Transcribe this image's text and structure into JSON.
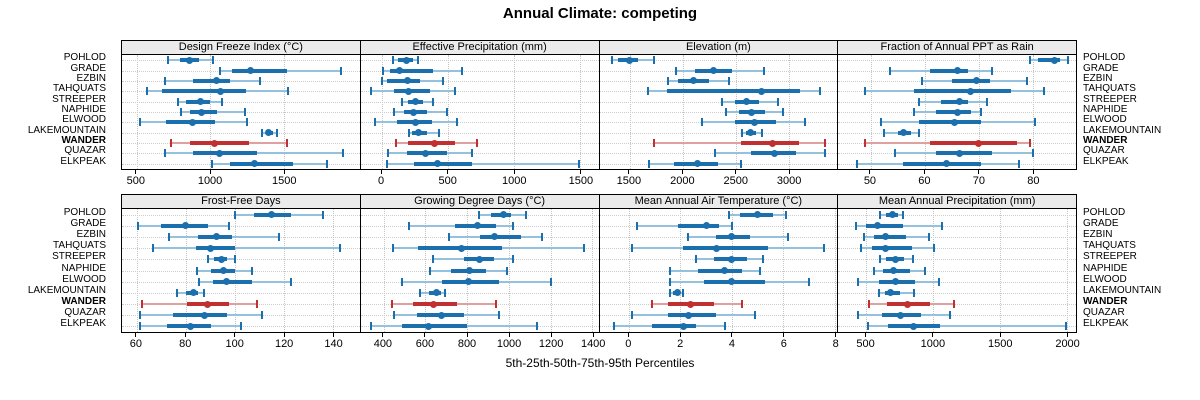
{
  "title": "Annual Climate: competing",
  "caption": "5th-25th-50th-75th-95th Percentiles",
  "colors": {
    "series_blue": "#1b6fad",
    "series_blue_light": "#93c1de",
    "highlight_red": "#c13030",
    "highlight_red_light": "#dfa0a0",
    "strip_bg": "#ebebeb",
    "grid": "#c8c8c8",
    "border": "#000000"
  },
  "chart_data": {
    "type": "dotplot-percentile-whiskers",
    "percentiles": [
      5,
      25,
      50,
      75,
      95
    ],
    "legend": "none",
    "grid": "dotted",
    "layout": {
      "rows": 2,
      "cols": 4
    },
    "sites": [
      "POHLOD",
      "GRADE",
      "EZBIN",
      "TAHQUATS",
      "STREEPER",
      "NAPHIDE",
      "ELWOOD",
      "LAKEMOUNTAIN",
      "WANDER",
      "QUAZAR",
      "ELKPEAK"
    ],
    "highlight_site": "WANDER",
    "panels": [
      {
        "slug": "design-freeze-index",
        "title": "Design Freeze Index (°C)",
        "xlim": [
          400,
          2015
        ],
        "ticks": [
          500,
          1000,
          1500
        ],
        "values": [
          [
            710,
            795,
            860,
            925,
            1015
          ],
          [
            1065,
            1145,
            1270,
            1520,
            1890
          ],
          [
            695,
            880,
            1045,
            1135,
            1335
          ],
          [
            570,
            670,
            1070,
            1240,
            1530
          ],
          [
            780,
            835,
            930,
            1000,
            1080
          ],
          [
            800,
            860,
            940,
            1045,
            1235
          ],
          [
            520,
            700,
            880,
            1030,
            1250
          ],
          [
            1350,
            1375,
            1398,
            1425,
            1450
          ],
          [
            735,
            860,
            1025,
            1260,
            1520
          ],
          [
            690,
            880,
            1060,
            1315,
            1900
          ],
          [
            1010,
            1135,
            1300,
            1560,
            1790
          ]
        ]
      },
      {
        "slug": "effective-precipitation",
        "title": "Effective Precipitation (mm)",
        "xlim": [
          -160,
          1640
        ],
        "ticks": [
          0,
          500,
          1000,
          1500
        ],
        "values": [
          [
            85,
            125,
            190,
            235,
            270
          ],
          [
            5,
            65,
            135,
            390,
            605
          ],
          [
            0,
            40,
            195,
            290,
            465
          ],
          [
            -80,
            90,
            200,
            365,
            555
          ],
          [
            150,
            200,
            255,
            315,
            390
          ],
          [
            95,
            165,
            240,
            340,
            490
          ],
          [
            -50,
            115,
            255,
            380,
            565
          ],
          [
            205,
            230,
            280,
            340,
            430
          ],
          [
            105,
            200,
            400,
            555,
            720
          ],
          [
            45,
            190,
            330,
            490,
            680
          ],
          [
            40,
            240,
            420,
            680,
            1495
          ]
        ]
      },
      {
        "slug": "elevation",
        "title": "Elevation (m)",
        "xlim": [
          1215,
          3460
        ],
        "ticks": [
          1500,
          2000,
          2500,
          3000
        ],
        "values": [
          [
            1335,
            1385,
            1495,
            1575,
            1725
          ],
          [
            1935,
            2120,
            2295,
            2470,
            2765
          ],
          [
            1860,
            1960,
            2105,
            2250,
            2440
          ],
          [
            1670,
            1850,
            2740,
            3110,
            3300
          ],
          [
            2375,
            2490,
            2600,
            2725,
            2900
          ],
          [
            2410,
            2535,
            2655,
            2775,
            2950
          ],
          [
            2185,
            2490,
            2680,
            2885,
            3155
          ],
          [
            2560,
            2600,
            2645,
            2695,
            2750
          ],
          [
            1730,
            2550,
            2845,
            3100,
            3340
          ],
          [
            2305,
            2645,
            2870,
            3075,
            3340
          ],
          [
            1680,
            1915,
            2145,
            2330,
            2550
          ]
        ]
      },
      {
        "slug": "fraction-ppt-rain",
        "title": "Fraction of Annual PPT as Rain",
        "xlim": [
          44,
          88
        ],
        "ticks": [
          50,
          60,
          70,
          80
        ],
        "values": [
          [
            79.5,
            81,
            84,
            85,
            86.5
          ],
          [
            53.5,
            61,
            66,
            68,
            72.5
          ],
          [
            59.5,
            65,
            69.5,
            72,
            79
          ],
          [
            49,
            58,
            68.5,
            76,
            82
          ],
          [
            59,
            63,
            66.5,
            68,
            71.5
          ],
          [
            58,
            62,
            66,
            68.5,
            70.5
          ],
          [
            52,
            59,
            65.5,
            70.5,
            80.5
          ],
          [
            52.5,
            55,
            56,
            57.5,
            59
          ],
          [
            49,
            61,
            70,
            77,
            79.5
          ],
          [
            54.5,
            62,
            66.5,
            72.5,
            80
          ],
          [
            47.5,
            56,
            64,
            70.5,
            77.5
          ]
        ]
      },
      {
        "slug": "frost-free-days",
        "title": "Frost-Free Days",
        "xlim": [
          54,
          151
        ],
        "ticks": [
          60,
          80,
          100,
          120,
          140
        ],
        "values": [
          [
            100,
            108,
            115,
            123,
            136
          ],
          [
            60.5,
            70,
            80,
            89,
            97.5
          ],
          [
            73,
            85,
            92.5,
            99,
            118
          ],
          [
            66.5,
            84,
            90,
            100,
            143
          ],
          [
            89,
            91.5,
            94.5,
            97,
            100
          ],
          [
            84.5,
            90.5,
            95.5,
            100,
            107
          ],
          [
            85.5,
            91,
            96.5,
            107,
            123
          ],
          [
            76.5,
            80,
            83,
            85,
            87.5
          ],
          [
            62,
            80.5,
            89,
            97.5,
            109
          ],
          [
            61.5,
            75,
            87.5,
            97,
            111
          ],
          [
            61.5,
            72.5,
            82,
            90.5,
            102.5
          ]
        ]
      },
      {
        "slug": "growing-degree-days",
        "title": "Growing Degree Days (°C)",
        "xlim": [
          290,
          1430
        ],
        "ticks": [
          400,
          600,
          800,
          1000,
          1200,
          1400
        ],
        "values": [
          [
            855,
            915,
            975,
            1010,
            1080
          ],
          [
            520,
            740,
            850,
            940,
            1020
          ],
          [
            715,
            860,
            930,
            1060,
            1160
          ],
          [
            445,
            565,
            775,
            965,
            1360
          ],
          [
            635,
            785,
            860,
            930,
            1020
          ],
          [
            620,
            725,
            810,
            890,
            990
          ],
          [
            490,
            680,
            805,
            955,
            1200
          ],
          [
            575,
            615,
            655,
            675,
            695
          ],
          [
            440,
            540,
            640,
            750,
            940
          ],
          [
            450,
            560,
            675,
            785,
            955
          ],
          [
            340,
            490,
            615,
            800,
            1135
          ]
        ]
      },
      {
        "slug": "mean-annual-air-temperature",
        "title": "Mean Annual Air Temperature (°C)",
        "xlim": [
          -1.15,
          8.1
        ],
        "ticks": [
          0,
          2,
          4,
          6,
          8
        ],
        "values": [
          [
            3.9,
            4.3,
            5.0,
            5.6,
            6.1
          ],
          [
            0.3,
            1.9,
            3.0,
            3.5,
            4.0
          ],
          [
            2.3,
            3.4,
            4.0,
            4.7,
            6.2
          ],
          [
            0.1,
            2.1,
            3.4,
            5.4,
            7.6
          ],
          [
            2.6,
            3.3,
            4.0,
            4.6,
            5.2
          ],
          [
            1.6,
            2.7,
            3.7,
            4.4,
            5.1
          ],
          [
            1.6,
            2.9,
            4.0,
            5.3,
            7.0
          ],
          [
            1.6,
            1.7,
            1.9,
            2.0,
            2.1
          ],
          [
            0.9,
            1.5,
            2.4,
            3.3,
            4.4
          ],
          [
            0.1,
            1.5,
            2.3,
            3.4,
            4.9
          ],
          [
            -0.6,
            0.9,
            2.1,
            2.6,
            3.75
          ]
        ]
      },
      {
        "slug": "mean-annual-precipitation",
        "title": "Mean Annual Precipitation (mm)",
        "xlim": [
          290,
          2070
        ],
        "ticks": [
          500,
          1000,
          1500,
          2000
        ],
        "values": [
          [
            600,
            645,
            695,
            740,
            775
          ],
          [
            420,
            500,
            585,
            775,
            1065
          ],
          [
            480,
            560,
            645,
            795,
            970
          ],
          [
            460,
            545,
            645,
            840,
            1005
          ],
          [
            605,
            650,
            720,
            780,
            850
          ],
          [
            560,
            625,
            705,
            825,
            940
          ],
          [
            435,
            595,
            715,
            865,
            1045
          ],
          [
            595,
            640,
            680,
            755,
            860
          ],
          [
            520,
            655,
            810,
            980,
            1160
          ],
          [
            435,
            615,
            755,
            910,
            1130
          ],
          [
            515,
            665,
            855,
            1055,
            1995
          ]
        ]
      }
    ]
  }
}
